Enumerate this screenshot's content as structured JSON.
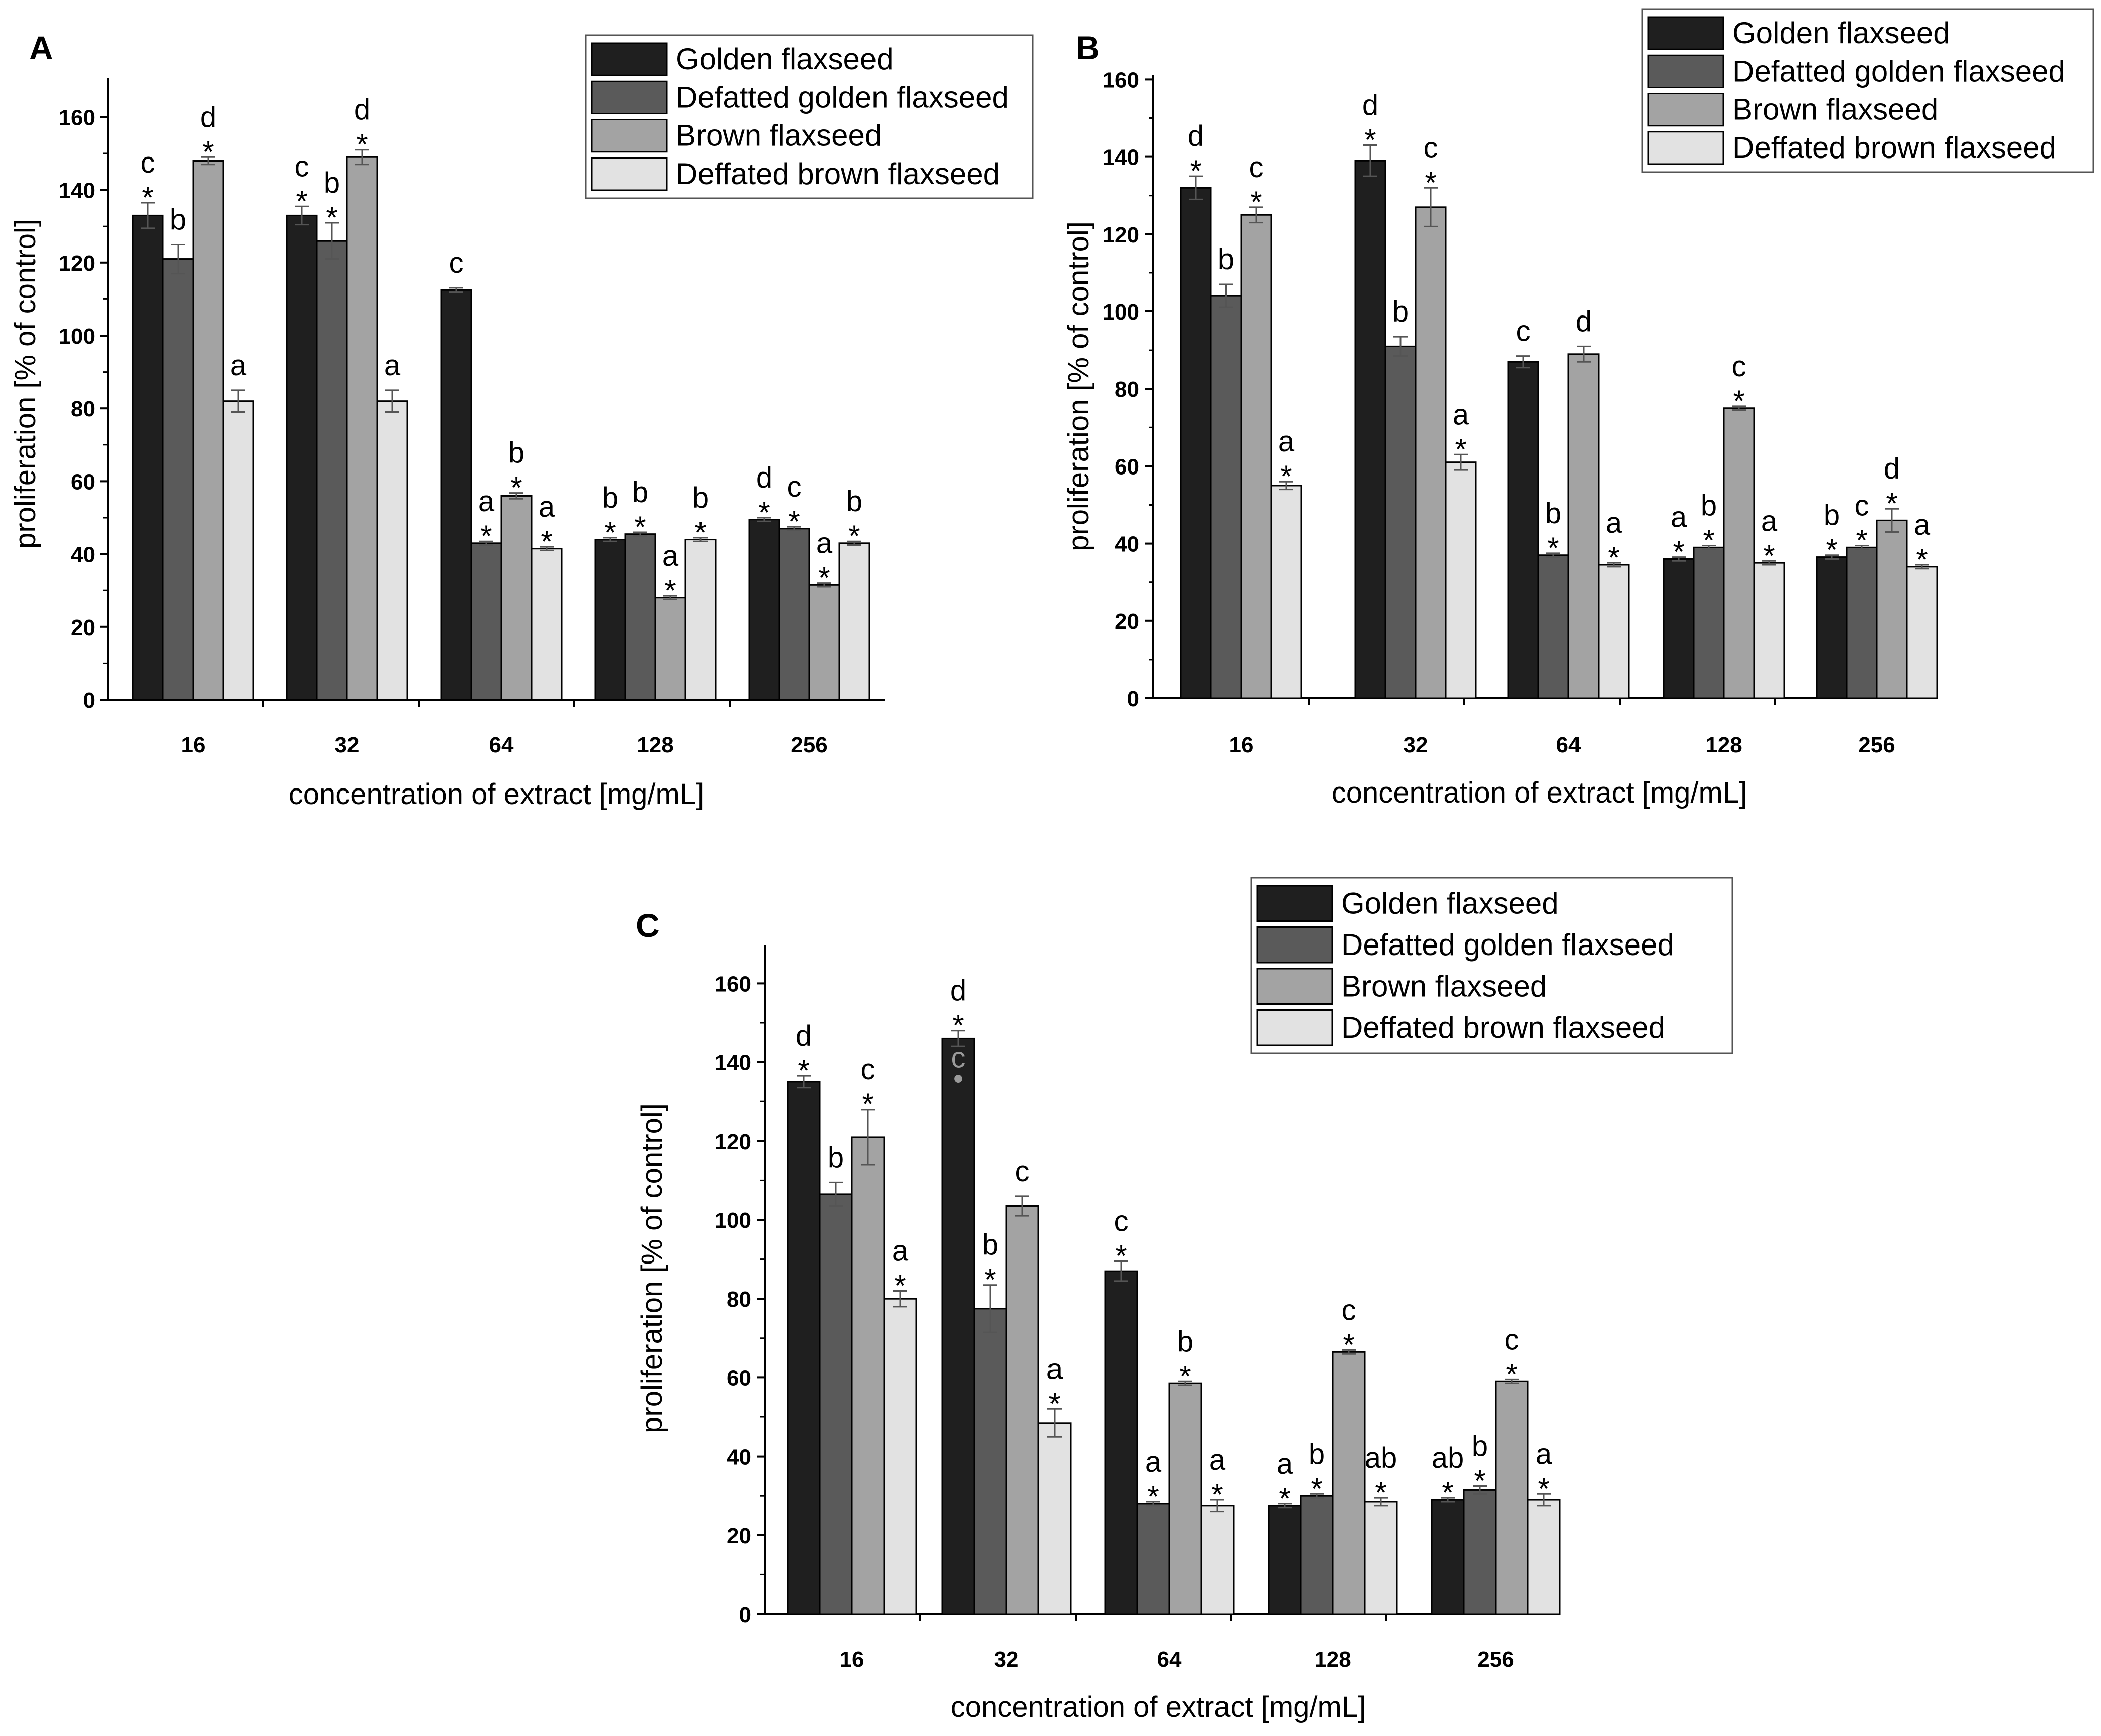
{
  "colors": {
    "series": [
      "#1f1f1f",
      "#5a5a5a",
      "#a3a3a3",
      "#e2e2e2"
    ],
    "bar_edge": "#000000",
    "error_bar": "#555555",
    "axis": "#000000"
  },
  "chart_data": [
    {
      "type": "bar",
      "panel": "A",
      "categories": [
        "16",
        "32",
        "64",
        "128",
        "256"
      ],
      "xlabel": "concentration of extract [mg/mL]",
      "ylabel": "proliferation [% of control]",
      "ylim": [
        0,
        170
      ],
      "yticks": [
        "0",
        "20",
        "40",
        "60",
        "80",
        "100",
        "120",
        "140",
        "160"
      ],
      "legend_position": "top-right",
      "series": [
        {
          "name": "Golden flaxseed",
          "values": [
            133,
            133,
            112.5,
            44,
            49.5
          ],
          "errors": [
            3.5,
            2.5,
            0.6,
            0.5,
            0.5
          ],
          "letters": [
            "c",
            "c",
            "c",
            "b",
            "d"
          ],
          "stars": [
            true,
            true,
            false,
            true,
            true
          ]
        },
        {
          "name": "Defatted golden flaxseed",
          "values": [
            121,
            126,
            43,
            45.5,
            47
          ],
          "errors": [
            4,
            5,
            0.5,
            0.5,
            0.5
          ],
          "letters": [
            "b",
            "b",
            "a",
            "b",
            "c"
          ],
          "stars": [
            false,
            true,
            true,
            true,
            true
          ]
        },
        {
          "name": "Brown flaxseed",
          "values": [
            148,
            149,
            56,
            28,
            31.5
          ],
          "errors": [
            1,
            2,
            0.8,
            0.5,
            0.5
          ],
          "letters": [
            "d",
            "d",
            "b",
            "a",
            "a"
          ],
          "stars": [
            true,
            true,
            true,
            true,
            true
          ]
        },
        {
          "name": "Deffated brown flaxseed",
          "values": [
            82,
            82,
            41.5,
            44,
            43
          ],
          "errors": [
            3,
            3,
            0.5,
            0.5,
            0.5
          ],
          "letters": [
            "a",
            "a",
            "a",
            "b",
            "b"
          ],
          "stars": [
            false,
            false,
            true,
            true,
            true
          ]
        }
      ]
    },
    {
      "type": "bar",
      "panel": "B",
      "categories": [
        "16",
        "32",
        "64",
        "128",
        "256"
      ],
      "xlabel": "concentration of extract [mg/mL]",
      "ylabel": "proliferation [% of control]",
      "ylim": [
        0,
        160
      ],
      "yticks": [
        "0",
        "20",
        "40",
        "60",
        "80",
        "100",
        "120",
        "140",
        "160"
      ],
      "legend_position": "top-right",
      "series": [
        {
          "name": "Golden flaxseed",
          "values": [
            132,
            139,
            87,
            36,
            36.5
          ],
          "errors": [
            3,
            4,
            1.5,
            0.5,
            0.5
          ],
          "letters": [
            "d",
            "d",
            "c",
            "a",
            "b"
          ],
          "stars": [
            true,
            true,
            false,
            true,
            true
          ]
        },
        {
          "name": "Defatted golden flaxseed",
          "values": [
            104,
            91,
            37,
            39,
            39
          ],
          "errors": [
            3,
            2.5,
            0.5,
            0.5,
            0.5
          ],
          "letters": [
            "b",
            "b",
            "b",
            "b",
            "c"
          ],
          "stars": [
            false,
            false,
            true,
            true,
            true
          ]
        },
        {
          "name": "Brown flaxseed",
          "values": [
            125,
            127,
            89,
            75,
            46
          ],
          "errors": [
            2,
            5,
            2,
            0.5,
            3
          ],
          "letters": [
            "c",
            "c",
            "d",
            "c",
            "d"
          ],
          "stars": [
            true,
            true,
            false,
            true,
            true
          ]
        },
        {
          "name": "Deffated brown flaxseed",
          "values": [
            55,
            61,
            34.5,
            35,
            34
          ],
          "errors": [
            1,
            2,
            0.5,
            0.5,
            0.5
          ],
          "letters": [
            "a",
            "a",
            "a",
            "a",
            "a"
          ],
          "stars": [
            true,
            true,
            true,
            true,
            true
          ]
        }
      ]
    },
    {
      "type": "bar",
      "panel": "C",
      "categories": [
        "16",
        "32",
        "64",
        "128",
        "256"
      ],
      "xlabel": "concentration of extract [mg/mL]",
      "ylabel": "proliferation [% of control]",
      "ylim": [
        0,
        170
      ],
      "yticks": [
        "0",
        "20",
        "40",
        "60",
        "80",
        "100",
        "120",
        "140",
        "160"
      ],
      "legend_position": "top-right",
      "series": [
        {
          "name": "Golden flaxseed",
          "values": [
            135,
            146,
            87,
            27.5,
            29
          ],
          "errors": [
            1.5,
            2,
            2.5,
            0.5,
            0.5
          ],
          "letters": [
            "d",
            "d",
            "c",
            "a",
            "ab"
          ],
          "stars": [
            true,
            true,
            true,
            true,
            true
          ]
        },
        {
          "name": "Defatted golden flaxseed",
          "values": [
            106.5,
            77.5,
            28,
            30,
            31.5
          ],
          "errors": [
            3,
            6,
            0.5,
            0.5,
            1
          ],
          "letters": [
            "b",
            "b",
            "a",
            "b",
            "b"
          ],
          "stars": [
            false,
            true,
            true,
            true,
            true
          ]
        },
        {
          "name": "Brown flaxseed",
          "values": [
            121,
            103.5,
            58.5,
            66.5,
            59
          ],
          "errors": [
            7,
            2.5,
            0.5,
            0.5,
            0.5
          ],
          "letters": [
            "c",
            "c",
            "b",
            "c",
            "c"
          ],
          "stars": [
            true,
            false,
            true,
            true,
            true
          ]
        },
        {
          "name": "Deffated brown flaxseed",
          "values": [
            80,
            48.5,
            27.5,
            28.5,
            29
          ],
          "errors": [
            2,
            3.5,
            1.5,
            1,
            1.5
          ],
          "letters": [
            "a",
            "a",
            "a",
            "ab",
            "a"
          ],
          "stars": [
            true,
            true,
            true,
            true,
            true
          ]
        }
      ],
      "annotation": {
        "text": "c",
        "series": 0,
        "category": 1,
        "note": "extra letter inside first bar at 32 mg/mL"
      }
    }
  ]
}
